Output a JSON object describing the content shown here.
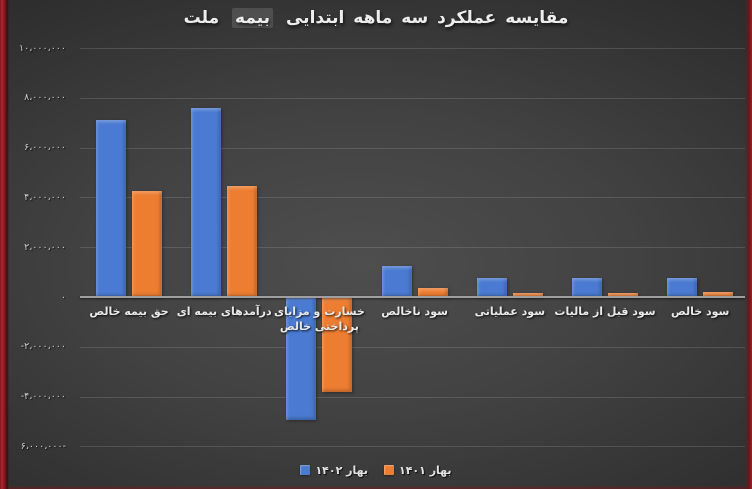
{
  "edges": {
    "left_strip_color": "#b02430",
    "right_strip_color": "#9c2026",
    "bottom_edge_color": "#7d161c"
  },
  "chart_data": {
    "type": "bar",
    "title": "مقایسه عملکرد سه ماهه ابتدایی بیمه ملت",
    "title_parts": {
      "pre": "مقایسه عملکرد سه ماهه ابتدایی",
      "highlight": "بیمه",
      "post": "ملت"
    },
    "title_color": "#ededed",
    "background_color": "#3f3f3f",
    "grid": true,
    "legend_position": "bottom",
    "categories": [
      "حق بیمه خالص",
      "درآمدهای بیمه ای",
      "خسارت و مزایای\nپرداختی خالص",
      "سود ناخالص",
      "سود عملیاتی",
      "سود قبل از مالیات",
      "سود خالص"
    ],
    "series": [
      {
        "name": "بهار ۱۴۰۲",
        "color": "#4a7ad2",
        "values": [
          7100000,
          7600000,
          -4950000,
          1250000,
          750000,
          750000,
          750000
        ]
      },
      {
        "name": "بهار ۱۴۰۱",
        "color": "#ed7d31",
        "values": [
          4250000,
          4450000,
          -3800000,
          350000,
          150000,
          150000,
          200000
        ]
      }
    ],
    "ylim": [
      -6000000,
      10000000
    ],
    "y_ticks": [
      {
        "label": "۱۰،۰۰۰،۰۰۰",
        "value": 10000000
      },
      {
        "label": "۸،۰۰۰،۰۰۰",
        "value": 8000000
      },
      {
        "label": "۶،۰۰۰،۰۰۰",
        "value": 6000000
      },
      {
        "label": "۴،۰۰۰،۰۰۰",
        "value": 4000000
      },
      {
        "label": "۲،۰۰۰،۰۰۰",
        "value": 2000000
      },
      {
        "label": "۰",
        "value": 0
      },
      {
        "label": "-۲،۰۰۰،۰۰۰",
        "value": -2000000
      },
      {
        "label": "-۴،۰۰۰،۰۰۰",
        "value": -4000000
      },
      {
        "label": "۶،۰۰۰،۰۰۰-",
        "value": -6000000
      }
    ]
  }
}
